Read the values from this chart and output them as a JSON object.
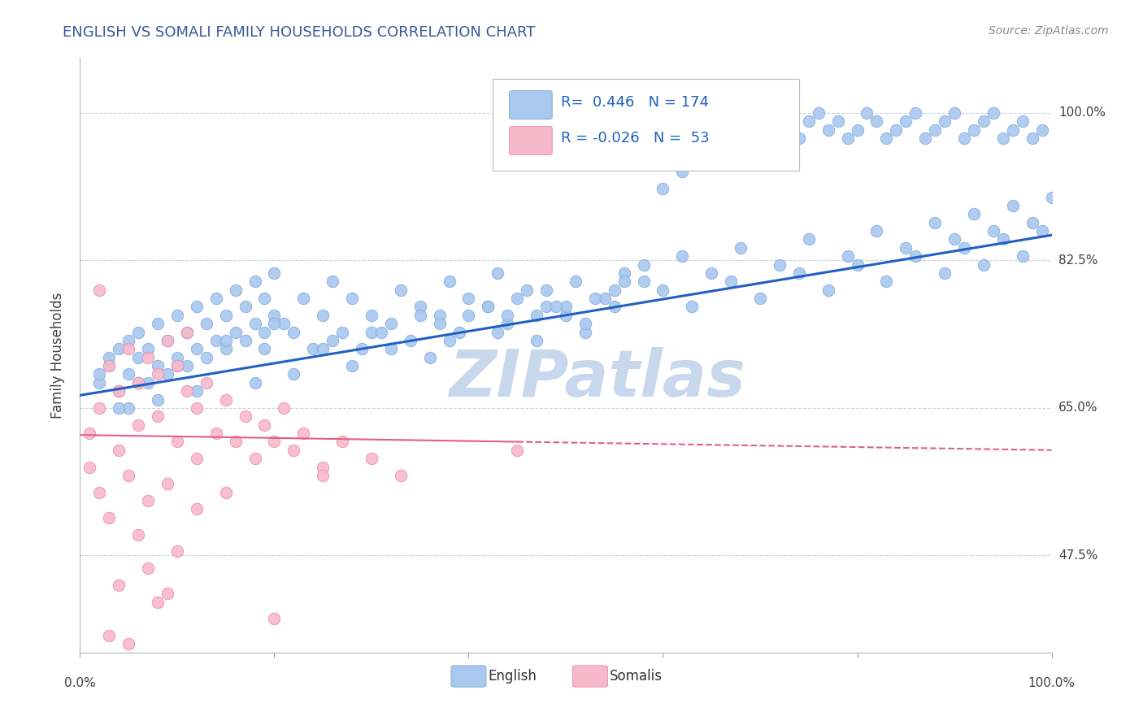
{
  "title": "ENGLISH VS SOMALI FAMILY HOUSEHOLDS CORRELATION CHART",
  "source": "Source: ZipAtlas.com",
  "ylabel": "Family Households",
  "legend_entries": [
    {
      "label": "English",
      "R": 0.446,
      "N": 174
    },
    {
      "label": "Somalis",
      "R": -0.026,
      "N": 53
    }
  ],
  "yticks": [
    0.475,
    0.65,
    0.825,
    1.0
  ],
  "ytick_labels": [
    "47.5%",
    "65.0%",
    "82.5%",
    "100.0%"
  ],
  "xlim": [
    0.0,
    1.0
  ],
  "ylim": [
    0.36,
    1.065
  ],
  "watermark": "ZIPatlas",
  "watermark_color": "#c8d8ec",
  "background_color": "#ffffff",
  "grid_color": "#c8d4e0",
  "title_color": "#3a5a9a",
  "source_color": "#888888",
  "blue_dot_color": "#a8c8f0",
  "blue_dot_edge": "#80a8d8",
  "pink_dot_color": "#f8b8cc",
  "pink_dot_edge": "#e888a8",
  "blue_line_color": "#2060c0",
  "pink_line_color": "#e06080",
  "legend_color": "#2060c0",
  "legend_box_edge": "#b0bcc8",
  "english_x": [
    0.02,
    0.03,
    0.04,
    0.04,
    0.05,
    0.05,
    0.05,
    0.06,
    0.06,
    0.07,
    0.07,
    0.08,
    0.08,
    0.09,
    0.09,
    0.1,
    0.1,
    0.11,
    0.11,
    0.12,
    0.12,
    0.13,
    0.13,
    0.14,
    0.14,
    0.15,
    0.15,
    0.16,
    0.16,
    0.17,
    0.17,
    0.18,
    0.18,
    0.19,
    0.19,
    0.2,
    0.2,
    0.21,
    0.22,
    0.23,
    0.24,
    0.25,
    0.26,
    0.27,
    0.28,
    0.29,
    0.3,
    0.32,
    0.33,
    0.34,
    0.35,
    0.37,
    0.38,
    0.39,
    0.4,
    0.42,
    0.43,
    0.44,
    0.46,
    0.47,
    0.48,
    0.5,
    0.51,
    0.52,
    0.54,
    0.55,
    0.56,
    0.58,
    0.6,
    0.62,
    0.63,
    0.65,
    0.67,
    0.68,
    0.7,
    0.72,
    0.74,
    0.75,
    0.77,
    0.79,
    0.8,
    0.82,
    0.83,
    0.85,
    0.86,
    0.88,
    0.89,
    0.9,
    0.91,
    0.92,
    0.93,
    0.94,
    0.95,
    0.96,
    0.97,
    0.98,
    0.99,
    1.0,
    0.6,
    0.62,
    0.64,
    0.65,
    0.67,
    0.68,
    0.69,
    0.7,
    0.71,
    0.72,
    0.73,
    0.74,
    0.75,
    0.76,
    0.77,
    0.78,
    0.79,
    0.8,
    0.81,
    0.82,
    0.83,
    0.84,
    0.85,
    0.86,
    0.87,
    0.88,
    0.89,
    0.9,
    0.91,
    0.92,
    0.93,
    0.94,
    0.95,
    0.96,
    0.97,
    0.98,
    0.99,
    0.55,
    0.4,
    0.45,
    0.3,
    0.35,
    0.25,
    0.2,
    0.15,
    0.1,
    0.5,
    0.48,
    0.52,
    0.38,
    0.42,
    0.36,
    0.58,
    0.56,
    0.53,
    0.47,
    0.43,
    0.32,
    0.28,
    0.22,
    0.18,
    0.12,
    0.08,
    0.06,
    0.04,
    0.03,
    0.02,
    0.19,
    0.26,
    0.31,
    0.37,
    0.44,
    0.49
  ],
  "english_y": [
    0.68,
    0.7,
    0.67,
    0.72,
    0.65,
    0.73,
    0.69,
    0.71,
    0.74,
    0.68,
    0.72,
    0.7,
    0.75,
    0.69,
    0.73,
    0.71,
    0.76,
    0.7,
    0.74,
    0.72,
    0.77,
    0.71,
    0.75,
    0.73,
    0.78,
    0.72,
    0.76,
    0.74,
    0.79,
    0.73,
    0.77,
    0.75,
    0.8,
    0.74,
    0.78,
    0.76,
    0.81,
    0.75,
    0.74,
    0.78,
    0.72,
    0.76,
    0.8,
    0.74,
    0.78,
    0.72,
    0.76,
    0.75,
    0.79,
    0.73,
    0.77,
    0.76,
    0.8,
    0.74,
    0.78,
    0.77,
    0.81,
    0.75,
    0.79,
    0.73,
    0.77,
    0.76,
    0.8,
    0.74,
    0.78,
    0.77,
    0.81,
    0.8,
    0.79,
    0.83,
    0.77,
    0.81,
    0.8,
    0.84,
    0.78,
    0.82,
    0.81,
    0.85,
    0.79,
    0.83,
    0.82,
    0.86,
    0.8,
    0.84,
    0.83,
    0.87,
    0.81,
    0.85,
    0.84,
    0.88,
    0.82,
    0.86,
    0.85,
    0.89,
    0.83,
    0.87,
    0.86,
    0.9,
    0.91,
    0.93,
    0.95,
    0.98,
    1.0,
    0.99,
    1.0,
    0.97,
    0.98,
    0.99,
    1.0,
    0.97,
    0.99,
    1.0,
    0.98,
    0.99,
    0.97,
    0.98,
    1.0,
    0.99,
    0.97,
    0.98,
    0.99,
    1.0,
    0.97,
    0.98,
    0.99,
    1.0,
    0.97,
    0.98,
    0.99,
    1.0,
    0.97,
    0.98,
    0.99,
    0.97,
    0.98,
    0.79,
    0.76,
    0.78,
    0.74,
    0.76,
    0.72,
    0.75,
    0.73,
    0.7,
    0.77,
    0.79,
    0.75,
    0.73,
    0.77,
    0.71,
    0.82,
    0.8,
    0.78,
    0.76,
    0.74,
    0.72,
    0.7,
    0.69,
    0.68,
    0.67,
    0.66,
    0.68,
    0.65,
    0.71,
    0.69,
    0.72,
    0.73,
    0.74,
    0.75,
    0.76,
    0.77
  ],
  "somali_x": [
    0.01,
    0.01,
    0.02,
    0.02,
    0.03,
    0.03,
    0.04,
    0.04,
    0.05,
    0.05,
    0.06,
    0.06,
    0.07,
    0.07,
    0.08,
    0.08,
    0.09,
    0.09,
    0.1,
    0.1,
    0.11,
    0.11,
    0.12,
    0.12,
    0.13,
    0.14,
    0.15,
    0.16,
    0.17,
    0.18,
    0.19,
    0.2,
    0.21,
    0.22,
    0.23,
    0.25,
    0.27,
    0.3,
    0.33,
    0.45,
    0.04,
    0.06,
    0.08,
    0.1,
    0.12,
    0.03,
    0.07,
    0.15,
    0.2,
    0.25,
    0.05,
    0.09,
    0.02
  ],
  "somali_y": [
    0.62,
    0.58,
    0.65,
    0.55,
    0.7,
    0.52,
    0.67,
    0.6,
    0.72,
    0.57,
    0.68,
    0.63,
    0.71,
    0.54,
    0.69,
    0.64,
    0.73,
    0.56,
    0.7,
    0.61,
    0.67,
    0.74,
    0.65,
    0.59,
    0.68,
    0.62,
    0.66,
    0.61,
    0.64,
    0.59,
    0.63,
    0.61,
    0.65,
    0.6,
    0.62,
    0.58,
    0.61,
    0.59,
    0.57,
    0.6,
    0.44,
    0.5,
    0.42,
    0.48,
    0.53,
    0.38,
    0.46,
    0.55,
    0.4,
    0.57,
    0.37,
    0.43,
    0.79
  ],
  "blue_line_x0": 0.0,
  "blue_line_y0": 0.665,
  "blue_line_x1": 1.0,
  "blue_line_y1": 0.855,
  "pink_line_x0": 0.0,
  "pink_line_y0": 0.618,
  "pink_line_x1": 1.0,
  "pink_line_y1": 0.6
}
